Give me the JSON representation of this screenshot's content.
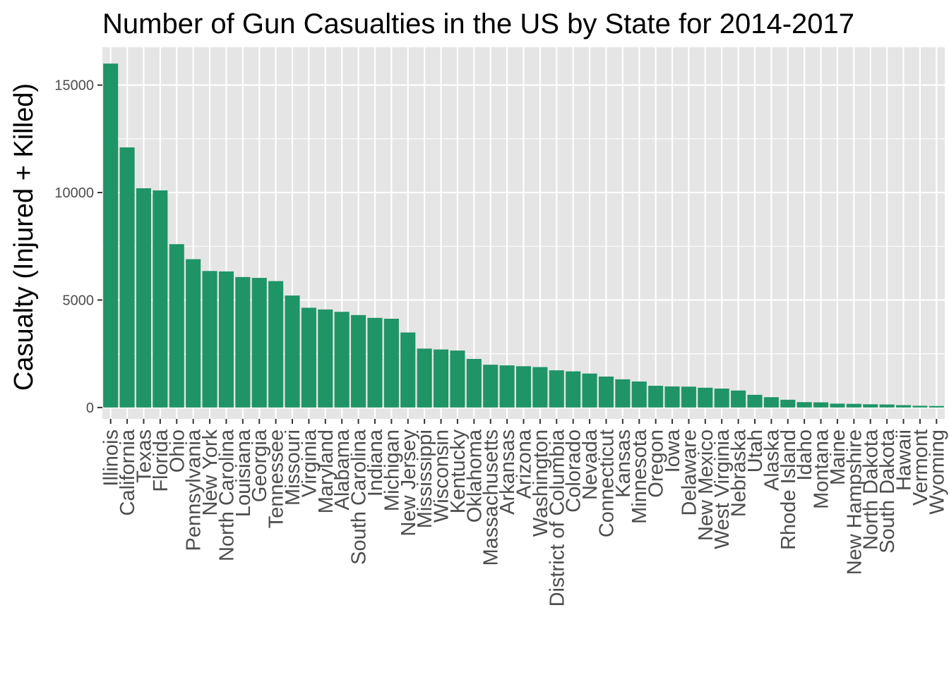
{
  "chart_data": {
    "type": "bar",
    "title": "Number of Gun Casualties in the US by State for 2014-2017",
    "xlabel": "",
    "ylabel": "Casualty (Injured + Killed)",
    "categories": [
      "Illinois",
      "California",
      "Texas",
      "Florida",
      "Ohio",
      "Pennsylvania",
      "New York",
      "North Carolina",
      "Louisiana",
      "Georgia",
      "Tennessee",
      "Missouri",
      "Virginia",
      "Maryland",
      "Alabama",
      "South Carolina",
      "Indiana",
      "Michigan",
      "New Jersey",
      "Mississippi",
      "Wisconsin",
      "Kentucky",
      "Oklahoma",
      "Massachusetts",
      "Arkansas",
      "Arizona",
      "Washington",
      "District of Columbia",
      "Colorado",
      "Nevada",
      "Connecticut",
      "Kansas",
      "Minnesota",
      "Oregon",
      "Iowa",
      "Delaware",
      "New Mexico",
      "West Virginia",
      "Nebraska",
      "Utah",
      "Alaska",
      "Rhode Island",
      "Idaho",
      "Montana",
      "Maine",
      "New Hampshire",
      "North Dakota",
      "South Dakota",
      "Hawaii",
      "Vermont",
      "Wyoming"
    ],
    "values": [
      16000,
      12100,
      10200,
      10100,
      7600,
      6900,
      6350,
      6330,
      6070,
      6030,
      5880,
      5210,
      4640,
      4560,
      4450,
      4300,
      4170,
      4130,
      3490,
      2740,
      2700,
      2650,
      2260,
      1990,
      1960,
      1920,
      1880,
      1730,
      1680,
      1580,
      1440,
      1310,
      1210,
      1010,
      980,
      970,
      920,
      880,
      790,
      590,
      480,
      360,
      250,
      240,
      180,
      170,
      150,
      140,
      110,
      80,
      70
    ],
    "yticks": [
      0,
      5000,
      10000,
      15000
    ],
    "ylim": [
      -530,
      16760
    ],
    "grid": true,
    "legend": "none",
    "colors": {
      "bar": "#1f9467",
      "panel": "#e5e5e5",
      "gridline": "#ffffff",
      "tick_text": "#4d4d4d"
    }
  }
}
